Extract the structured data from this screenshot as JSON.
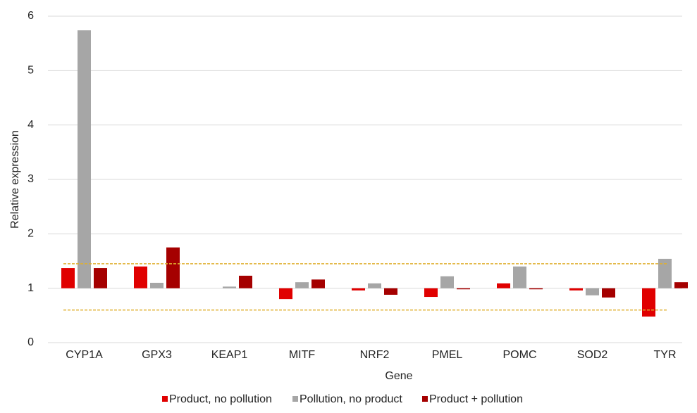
{
  "chart_data": {
    "type": "bar",
    "x_label": "Gene",
    "y_label": "Relative expression",
    "categories": [
      "CYP1A",
      "GPX3",
      "KEAP1",
      "MITF",
      "NRF2",
      "PMEL",
      "POMC",
      "SOD2",
      "TYR"
    ],
    "series": [
      {
        "name": "Product, no pollution",
        "color": "#e00000",
        "values": [
          1.37,
          1.4,
          1.0,
          0.8,
          0.96,
          0.84,
          1.09,
          0.96,
          0.48
        ]
      },
      {
        "name": "Pollution, no product",
        "color": "#a6a6a6",
        "values": [
          5.74,
          1.1,
          1.03,
          1.11,
          1.09,
          1.22,
          1.4,
          0.87,
          1.54
        ]
      },
      {
        "name": "Product + pollution",
        "color": "#a50000",
        "values": [
          1.37,
          1.75,
          1.23,
          1.16,
          0.88,
          0.98,
          0.98,
          0.83,
          1.11
        ]
      }
    ],
    "bar_base": 1,
    "reference_lines": [
      1.45,
      0.6
    ],
    "reference_color": "#e0b030",
    "ylim": [
      0,
      6
    ],
    "yticks": [
      0,
      1,
      2,
      3,
      4,
      5,
      6
    ],
    "grid": true,
    "legend": "bottom"
  }
}
